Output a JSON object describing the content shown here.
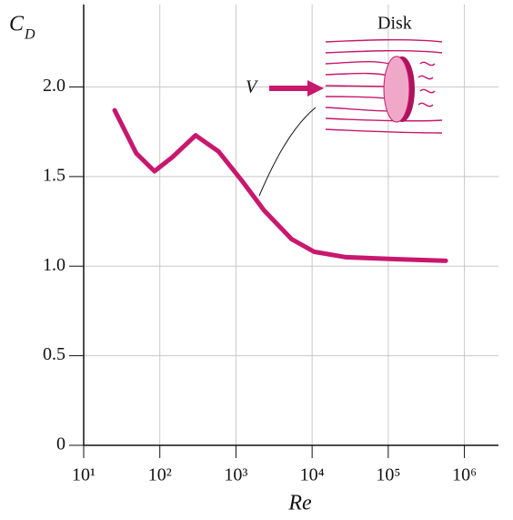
{
  "chart_data": {
    "type": "line",
    "x_label": "Re",
    "y_label": "C",
    "y_label_subscript": "D",
    "annotations": {
      "object": "Disk",
      "velocity": "V"
    },
    "xscale": "log",
    "xlim": [
      10,
      2800000
    ],
    "xticks": [
      {
        "value": 10,
        "label": "10¹"
      },
      {
        "value": 100,
        "label": "10²"
      },
      {
        "value": 1000,
        "label": "10³"
      },
      {
        "value": 10000,
        "label": "10⁴"
      },
      {
        "value": 100000,
        "label": "10⁵"
      },
      {
        "value": 1000000,
        "label": "10⁶"
      }
    ],
    "ylim": [
      0,
      2.46
    ],
    "yticks": [
      0,
      {
        "value": 0.5,
        "label": "0.5"
      },
      {
        "value": 1,
        "label": "1.0"
      },
      {
        "value": 1.5,
        "label": "1.5"
      },
      {
        "value": 2,
        "label": "2.0"
      }
    ],
    "grid": true,
    "series": [
      {
        "color": "#c8186e",
        "x": [
          25.5,
          49,
          85,
          148,
          295,
          590,
          1180,
          2350,
          5400,
          10700,
          27800,
          110000,
          570000
        ],
        "values": [
          1.87,
          1.63,
          1.53,
          1.61,
          1.73,
          1.64,
          1.48,
          1.31,
          1.15,
          1.08,
          1.05,
          1.04,
          1.03
        ]
      }
    ]
  }
}
